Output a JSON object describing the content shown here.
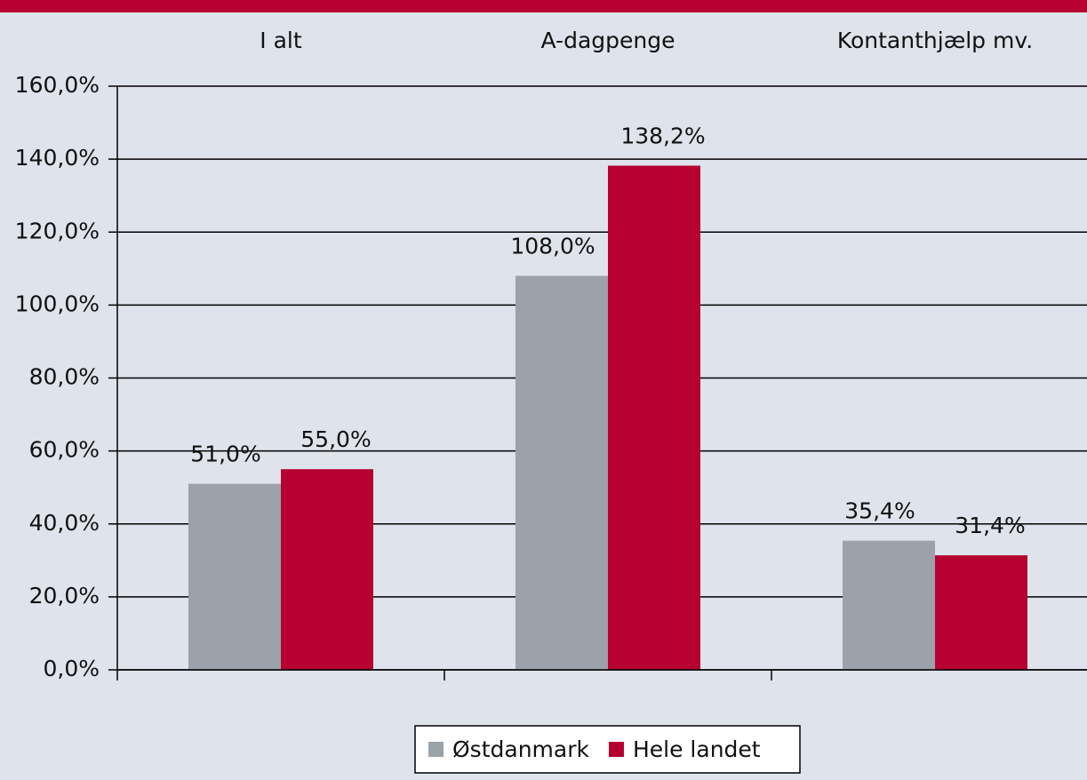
{
  "chart_data": {
    "type": "bar",
    "categories": [
      "I alt",
      "A-dagpenge",
      "Kontanthjælp mv."
    ],
    "series": [
      {
        "name": "Østdanmark",
        "color": "#9ba2a9",
        "values": [
          51.0,
          108.0,
          35.4
        ],
        "value_labels": [
          "51,0%",
          "108,0%",
          "35,4%"
        ]
      },
      {
        "name": "Hele landet",
        "color": "#b50030",
        "values": [
          55.0,
          138.2,
          31.4
        ],
        "value_labels": [
          "55,0%",
          "138,2%",
          "31,4%"
        ]
      }
    ],
    "ylim": [
      0,
      160
    ],
    "yticks": [
      {
        "value": 0,
        "label": "0,0%"
      },
      {
        "value": 20,
        "label": "20,0%"
      },
      {
        "value": 40,
        "label": "40,0%"
      },
      {
        "value": 60,
        "label": "60,0%"
      },
      {
        "value": 80,
        "label": "80,0%"
      },
      {
        "value": 100,
        "label": "100,0%"
      },
      {
        "value": 120,
        "label": "120,0%"
      },
      {
        "value": 140,
        "label": "140,0%"
      },
      {
        "value": 160,
        "label": "160,0%"
      }
    ],
    "grid": true,
    "legend": "bottom"
  }
}
